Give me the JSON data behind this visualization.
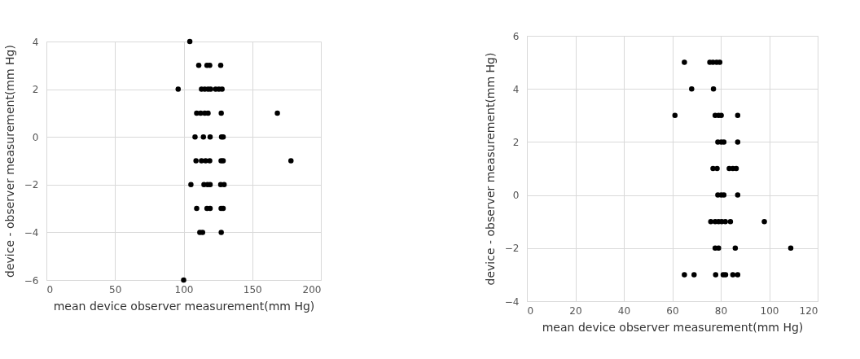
{
  "chart_data": [
    {
      "type": "scatter",
      "xlabel": "mean device observer measurement(mm Hg)",
      "ylabel": "device - observer measurement(mm Hg)",
      "xlim": [
        0,
        200
      ],
      "xticks": [
        0,
        50,
        100,
        150,
        200
      ],
      "ylim": [
        -6,
        4
      ],
      "yticks": [
        -6,
        -4,
        -2,
        0,
        2,
        4
      ],
      "grid": true,
      "marker": "circle",
      "series": [
        {
          "color": "#000000",
          "x": [
            104.5,
            111,
            117,
            119,
            127,
            96,
            113,
            115.4,
            117.8,
            119.7,
            123.3,
            125.7,
            128,
            109.5,
            112.4,
            115.4,
            117.8,
            127.4,
            168.3,
            108.3,
            114.4,
            119.3,
            127.6,
            128.8,
            109,
            113,
            116,
            119,
            127.3,
            128.8,
            178.2,
            105.3,
            114.8,
            117.4,
            119.3,
            127,
            129.5,
            109.5,
            117,
            119.3,
            127.3,
            128.8,
            111.8,
            113.8,
            127.4,
            100
          ],
          "values": [
            4,
            3,
            3,
            3,
            3,
            2,
            2,
            2,
            2,
            2,
            2,
            2,
            2,
            1,
            1,
            1,
            1,
            1,
            1,
            0,
            0,
            0,
            0,
            0,
            -1,
            -1,
            -1,
            -1,
            -1,
            -1,
            -1,
            -2,
            -2,
            -2,
            -2,
            -2,
            -2,
            -3,
            -3,
            -3,
            -3,
            -3,
            -4,
            -4,
            -4,
            -6
          ]
        }
      ]
    },
    {
      "type": "scatter",
      "xlabel": "mean device observer measurement(mm Hg)",
      "ylabel": "device - observer measurement(mm Hg)",
      "xlim": [
        0,
        120
      ],
      "xticks": [
        0,
        20,
        40,
        60,
        80,
        100,
        120
      ],
      "ylim": [
        -4,
        6
      ],
      "yticks": [
        -4,
        -2,
        0,
        2,
        4,
        6
      ],
      "grid": true,
      "marker": "circle",
      "series": [
        {
          "color": "#000000",
          "x": [
            65,
            75.5,
            76.8,
            78.3,
            79.6,
            68,
            77,
            61.1,
            77.7,
            79.1,
            80.2,
            87,
            78.8,
            80.2,
            81.3,
            87,
            76.8,
            78.5,
            83.5,
            85,
            86.4,
            78.8,
            80.2,
            81.3,
            87,
            75.9,
            77.7,
            79.1,
            80.4,
            81.9,
            84,
            98,
            77.7,
            79.1,
            86,
            108.9,
            65,
            69,
            77.9,
            81,
            82,
            85,
            87
          ],
          "values": [
            5,
            5,
            5,
            5,
            5,
            4,
            4,
            3,
            3,
            3,
            3,
            3,
            2,
            2,
            2,
            2,
            1,
            1,
            1,
            1,
            1,
            0,
            0,
            0,
            0,
            -1,
            -1,
            -1,
            -1,
            -1,
            -1,
            -1,
            -2,
            -2,
            -2,
            -2,
            -3,
            -3,
            -3,
            -3,
            -3,
            -3,
            -3
          ]
        }
      ]
    }
  ]
}
